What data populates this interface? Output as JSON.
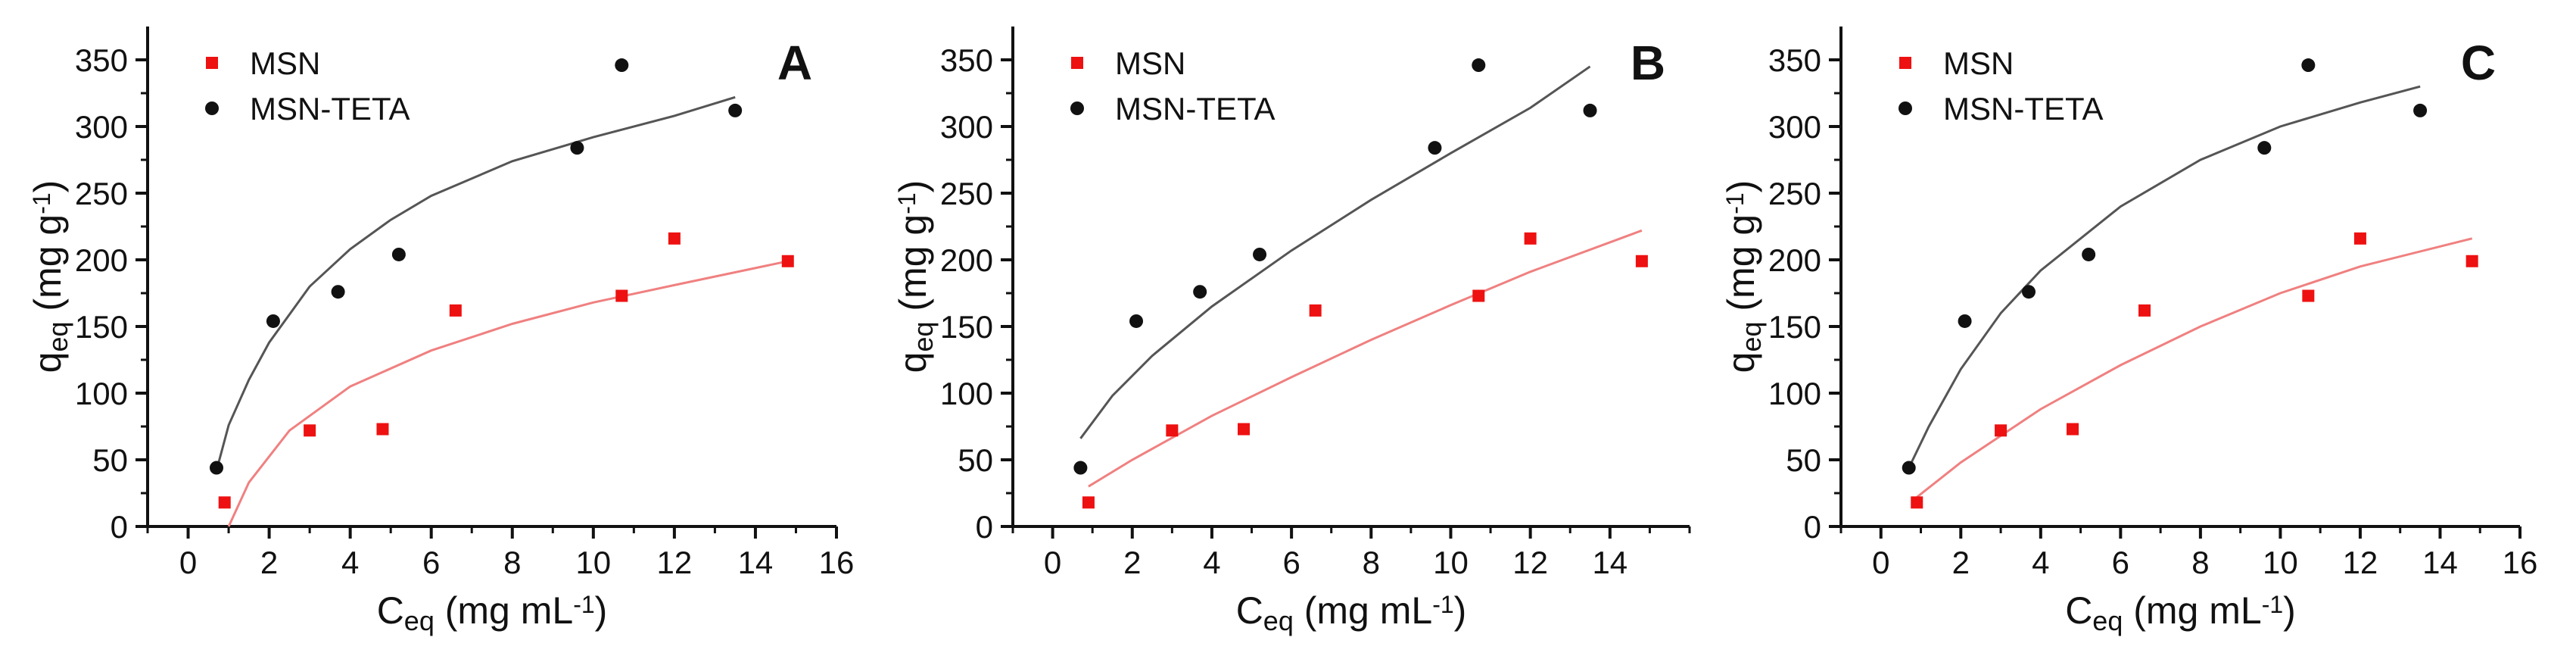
{
  "chart_data": [
    {
      "type": "scatter",
      "panel_label": "A",
      "xlabel": "C",
      "xlabel_sub": "eq",
      "xlabel_units": " (mg mL",
      "xlabel_units_sup": "-1",
      "xlabel_units_end": ")",
      "ylabel": "q",
      "ylabel_sub": "eq",
      "ylabel_units": " (mg g",
      "ylabel_units_sup": "-1",
      "ylabel_units_end": ")",
      "xlim": [
        -1,
        16
      ],
      "ylim": [
        0,
        375
      ],
      "xticks": [
        0,
        2,
        4,
        6,
        8,
        10,
        12,
        14,
        16
      ],
      "yticks": [
        0,
        50,
        100,
        150,
        200,
        250,
        300,
        350
      ],
      "legend_position": "top-left",
      "series": [
        {
          "name": "MSN",
          "marker": "square",
          "color": "#ee1111",
          "x": [
            0.9,
            3.0,
            4.8,
            6.6,
            10.7,
            12.0,
            14.8
          ],
          "y": [
            18,
            72,
            73,
            162,
            173,
            216,
            199
          ],
          "fit": {
            "color": "#f08080",
            "x": [
              1.0,
              1.5,
              2.5,
              4,
              6,
              8,
              10,
              12,
              14.8
            ],
            "y": [
              0,
              33,
              72,
              105,
              132,
              152,
              168,
              181,
              199
            ]
          }
        },
        {
          "name": "MSN-TETA",
          "marker": "circle",
          "color": "#111111",
          "x": [
            0.7,
            2.1,
            3.7,
            5.2,
            9.6,
            10.7,
            13.5
          ],
          "y": [
            44,
            154,
            176,
            204,
            284,
            346,
            312
          ],
          "fit": {
            "color": "#555555",
            "x": [
              0.7,
              1,
              1.5,
              2,
              3,
              4,
              5,
              6,
              8,
              10,
              12,
              13.5
            ],
            "y": [
              42,
              76,
              110,
              138,
              180,
              208,
              230,
              248,
              274,
              292,
              308,
              322
            ]
          }
        }
      ]
    },
    {
      "type": "scatter",
      "panel_label": "B",
      "xlabel": "C",
      "xlabel_sub": "eq",
      "xlabel_units": " (mg mL",
      "xlabel_units_sup": "-1",
      "xlabel_units_end": ")",
      "ylabel": "q",
      "ylabel_sub": "eq",
      "ylabel_units": " (mg g",
      "ylabel_units_sup": "-1",
      "ylabel_units_end": ")",
      "xlim": [
        -1,
        16
      ],
      "ylim": [
        0,
        375
      ],
      "xticks": [
        0,
        2,
        4,
        6,
        8,
        10,
        12,
        14
      ],
      "yticks": [
        0,
        50,
        100,
        150,
        200,
        250,
        300,
        350
      ],
      "legend_position": "top-left",
      "series": [
        {
          "name": "MSN",
          "marker": "square",
          "color": "#ee1111",
          "x": [
            0.9,
            3.0,
            4.8,
            6.6,
            10.7,
            12.0,
            14.8
          ],
          "y": [
            18,
            72,
            73,
            162,
            173,
            216,
            199
          ],
          "fit": {
            "color": "#f08080",
            "x": [
              0.9,
              2,
              4,
              6,
              8,
              10,
              12,
              14.8
            ],
            "y": [
              30,
              50,
              83,
              112,
              140,
              166,
              191,
              222
            ]
          }
        },
        {
          "name": "MSN-TETA",
          "marker": "circle",
          "color": "#111111",
          "x": [
            0.7,
            2.1,
            3.7,
            5.2,
            9.6,
            10.7,
            13.5
          ],
          "y": [
            44,
            154,
            176,
            204,
            284,
            346,
            312
          ],
          "fit": {
            "color": "#555555",
            "x": [
              0.7,
              1.5,
              2.5,
              4,
              6,
              8,
              10,
              12,
              13.5
            ],
            "y": [
              66,
              98,
              128,
              165,
              207,
              245,
              280,
              314,
              345
            ]
          }
        }
      ]
    },
    {
      "type": "scatter",
      "panel_label": "C",
      "xlabel": "C",
      "xlabel_sub": "eq",
      "xlabel_units": " (mg mL",
      "xlabel_units_sup": "-1",
      "xlabel_units_end": ")",
      "ylabel": "q",
      "ylabel_sub": "eq",
      "ylabel_units": " (mg g",
      "ylabel_units_sup": "-1",
      "ylabel_units_end": ")",
      "xlim": [
        -1,
        16
      ],
      "ylim": [
        0,
        375
      ],
      "xticks": [
        0,
        2,
        4,
        6,
        8,
        10,
        12,
        14,
        16
      ],
      "yticks": [
        0,
        50,
        100,
        150,
        200,
        250,
        300,
        350
      ],
      "legend_position": "top-left",
      "series": [
        {
          "name": "MSN",
          "marker": "square",
          "color": "#ee1111",
          "x": [
            0.9,
            3.0,
            4.8,
            6.6,
            10.7,
            12.0,
            14.8
          ],
          "y": [
            18,
            72,
            73,
            162,
            173,
            216,
            199
          ],
          "fit": {
            "color": "#f08080",
            "x": [
              0.9,
              2,
              3,
              4,
              6,
              8,
              10,
              12,
              14.8
            ],
            "y": [
              22,
              48,
              68,
              88,
              121,
              150,
              175,
              195,
              216
            ]
          }
        },
        {
          "name": "MSN-TETA",
          "marker": "circle",
          "color": "#111111",
          "x": [
            0.7,
            2.1,
            3.7,
            5.2,
            9.6,
            10.7,
            13.5
          ],
          "y": [
            44,
            154,
            176,
            204,
            284,
            346,
            312
          ],
          "fit": {
            "color": "#555555",
            "x": [
              0.7,
              1.2,
              2,
              3,
              4,
              6,
              8,
              10,
              12,
              13.5
            ],
            "y": [
              44,
              75,
              118,
              160,
              192,
              240,
              275,
              300,
              318,
              330
            ]
          }
        }
      ]
    }
  ]
}
